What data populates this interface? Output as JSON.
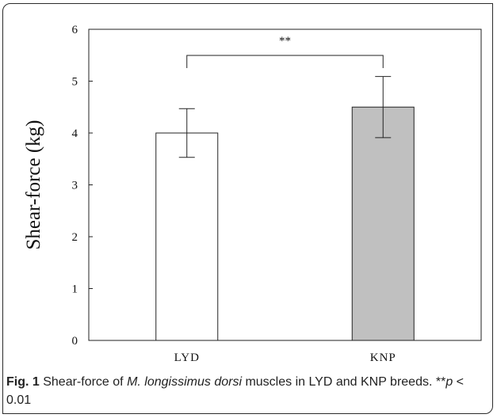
{
  "chart_data": {
    "type": "bar",
    "categories": [
      "LYD",
      "KNP"
    ],
    "series": [
      {
        "values": [
          4.0,
          4.5
        ],
        "errors": [
          0.47,
          0.59
        ],
        "colors": [
          "#ffffff",
          "#c0c0c0"
        ]
      }
    ],
    "xlabel": "",
    "ylabel": "Shear-force (kg)",
    "ylim": [
      0,
      6
    ],
    "yticks": [
      "0",
      "1",
      "2",
      "3",
      "4",
      "5",
      "6"
    ],
    "grid": false,
    "annotation": {
      "text": "**",
      "between": [
        "LYD",
        "KNP"
      ]
    }
  },
  "caption": {
    "label": "Fig. 1",
    "text_1": " Shear-force of ",
    "species": "M. longissimus dorsi",
    "text_2": " muscles in LYD and KNP breeds. **",
    "p_symbol": "p",
    "text_3": " < 0.01"
  }
}
